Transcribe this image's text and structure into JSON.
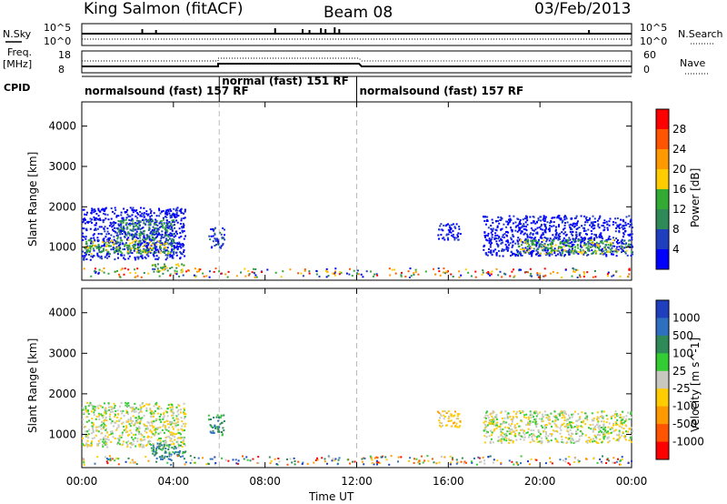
{
  "header": {
    "station": "King Salmon (fitACF)",
    "beam": "Beam 08",
    "date": "03/Feb/2013"
  },
  "status_panels": {
    "nsky_label": "N.Sky",
    "nsearch_label": "N.Search",
    "nsky_ticks": [
      "10^5",
      "10^0"
    ],
    "nsearch_ticks": [
      "10^5",
      "10^0"
    ],
    "freq_label_1": "Freq.",
    "freq_label_2": "[MHz]",
    "freq_ticks": [
      "18",
      "8"
    ],
    "nave_label": "Nave",
    "nave_ticks": [
      "60",
      "0"
    ],
    "cpid_label": "CPID",
    "modes": [
      {
        "text": "normalsound (fast) 157 RF",
        "start_h": 0.0,
        "end_h": 6.0
      },
      {
        "text": "normal (fast) 151 RF",
        "start_h": 6.0,
        "end_h": 12.0
      },
      {
        "text": "normalsound (fast) 157 RF",
        "start_h": 12.0,
        "end_h": 24.0
      }
    ]
  },
  "axes": {
    "ylabel": "Slant Range [km]",
    "yticks": [
      "4000",
      "3000",
      "2000",
      "1000"
    ],
    "xlabel": "Time UT",
    "xticks": [
      "00:00",
      "04:00",
      "08:00",
      "12:00",
      "16:00",
      "20:00",
      "00:00"
    ]
  },
  "chart_data": [
    {
      "type": "heatmap",
      "parameter": "Power",
      "x_range_hours": [
        0,
        24
      ],
      "ylim_km": [
        180,
        4600
      ],
      "colorbar": {
        "label": "Power [dB]",
        "ticks": [
          "28",
          "24",
          "20",
          "16",
          "12",
          "8",
          "4"
        ],
        "colors": [
          "#ff0000",
          "#ff5500",
          "#ff9900",
          "#ffcc00",
          "#33aa33",
          "#2e8b57",
          "#1f3fbf",
          "#0000ff"
        ]
      },
      "regions": [
        {
          "t0": 0.0,
          "t1": 4.5,
          "r0": 700,
          "r1": 2000,
          "level": 0
        },
        {
          "t0": 0.0,
          "t1": 4.0,
          "r0": 850,
          "r1": 1200,
          "level": 3
        },
        {
          "t0": 1.5,
          "t1": 4.0,
          "r0": 1200,
          "r1": 1700,
          "level": 2
        },
        {
          "t0": 3.0,
          "t1": 4.5,
          "r0": 400,
          "r1": 600,
          "level": 3
        },
        {
          "t0": 5.5,
          "t1": 6.2,
          "r0": 1000,
          "r1": 1500,
          "level": 1
        },
        {
          "t0": 15.5,
          "t1": 16.5,
          "r0": 1200,
          "r1": 1600,
          "level": 0
        },
        {
          "t0": 17.5,
          "t1": 24.0,
          "r0": 800,
          "r1": 1800,
          "level": 0
        },
        {
          "t0": 19.0,
          "t1": 24.0,
          "r0": 850,
          "r1": 1200,
          "level": 3
        }
      ]
    },
    {
      "type": "heatmap",
      "parameter": "Velocity",
      "x_range_hours": [
        0,
        24
      ],
      "ylim_km": [
        180,
        4600
      ],
      "colorbar": {
        "label": "Velocity [m s^-1]",
        "ticks": [
          "1000",
          "500",
          "100",
          "25",
          "-25",
          "-100",
          "-500",
          "-1000"
        ],
        "colors": [
          "#1f3fbf",
          "#2e6fbf",
          "#2e8b57",
          "#33cc33",
          "#c8c8c0",
          "#ffcc00",
          "#ff9900",
          "#ff5500",
          "#ff0000"
        ]
      },
      "regions": [
        {
          "t0": 0.0,
          "t1": 4.5,
          "r0": 700,
          "r1": 1800,
          "level": 4
        },
        {
          "t0": 3.0,
          "t1": 4.5,
          "r0": 400,
          "r1": 800,
          "level": 6
        },
        {
          "t0": 5.5,
          "t1": 6.2,
          "r0": 1000,
          "r1": 1500,
          "level": 6
        },
        {
          "t0": 15.5,
          "t1": 16.5,
          "r0": 1200,
          "r1": 1600,
          "level": 3
        },
        {
          "t0": 17.5,
          "t1": 24.0,
          "r0": 800,
          "r1": 1600,
          "level": 4
        }
      ]
    }
  ]
}
